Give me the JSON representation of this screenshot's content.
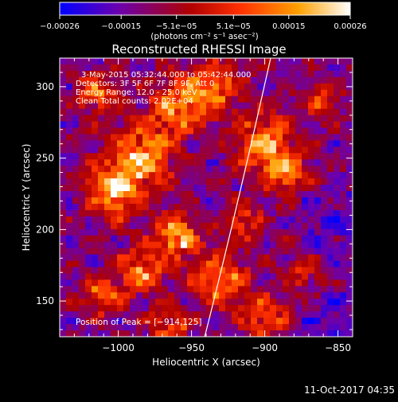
{
  "chart_data": {
    "type": "heatmap",
    "title": "Reconstructed RHESSI Image",
    "xlabel": "Heliocentric X (arcsec)",
    "ylabel": "Heliocentric Y (arcsec)",
    "xlim": [
      -1040,
      -840
    ],
    "ylim": [
      125,
      320
    ],
    "xticks": [
      -1000,
      -950,
      -900,
      -850
    ],
    "xtick_labels": [
      "−1000",
      "−950",
      "−900",
      "−850"
    ],
    "yticks": [
      150,
      200,
      250,
      300
    ],
    "ytick_labels": [
      "150",
      "200",
      "250",
      "300"
    ],
    "colorbar": {
      "min": -0.00026,
      "max": 0.00026,
      "ticks": [
        -0.00026,
        -0.00015,
        -5.1e-05,
        5.1e-05,
        0.00015,
        0.00026
      ],
      "tick_labels": [
        "−0.00026",
        "−0.00015",
        "−5.1e−05",
        "5.1e−05",
        "0.00015",
        "0.00026"
      ],
      "unit_label": "(photons cm⁻² s⁻¹ asec⁻²)",
      "colors": [
        "#0000ff",
        "#6a00b0",
        "#b00000",
        "#ff3000",
        "#ffa000",
        "#ffffff"
      ]
    },
    "info_lines": [
      "3-May-2015 05:32:44.000 to 05:42:44.000",
      "Detectors: 3F 5F 6F 7F 8F 9F, Att 0",
      "Energy Range: 12.0 - 25.0 keV",
      "Clean    Total counts: 2.02E+04"
    ],
    "peak_label": "Position of Peak = [−914,125]",
    "limb_curve": [
      [
        -941,
        125
      ],
      [
        -920,
        210
      ],
      [
        -896,
        320
      ]
    ],
    "grid": false,
    "colorbar_placement": "top"
  },
  "footer": {
    "timestamp": "11-Oct-2017 04:35"
  }
}
